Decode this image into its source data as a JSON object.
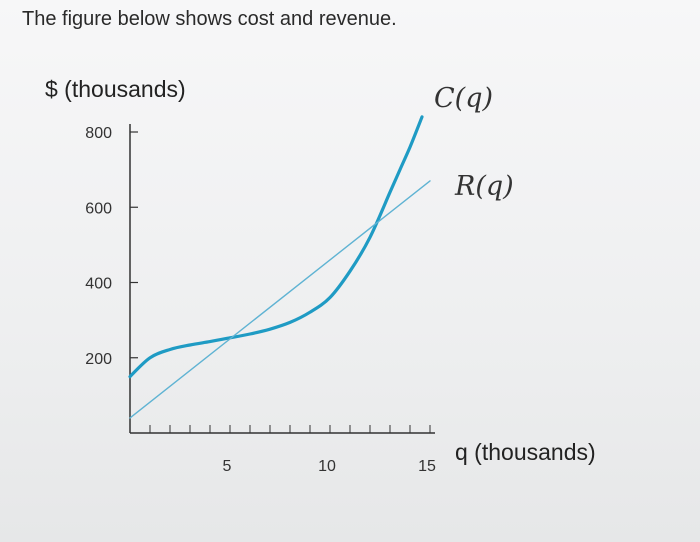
{
  "prompt": "The figure below shows cost and revenue.",
  "chart_data": {
    "type": "line",
    "ylabel": "$ (thousands)",
    "xlabel": "q (thousands)",
    "xlim": [
      0,
      15
    ],
    "ylim": [
      0,
      800
    ],
    "x_ticks": [
      5,
      10,
      15
    ],
    "y_ticks": [
      200,
      400,
      600,
      800
    ],
    "grid": false,
    "colors": {
      "cost": "#1f9bc4",
      "revenue": "#5fb3d3",
      "axis": "#333333"
    },
    "series": [
      {
        "name": "C(q)",
        "style": "thick",
        "x": [
          0,
          1,
          2,
          3,
          4,
          5,
          6,
          7,
          8,
          9,
          10,
          11,
          12,
          13,
          13.5,
          14,
          14.6
        ],
        "y": [
          150,
          200,
          222,
          234,
          243,
          253,
          263,
          276,
          294,
          321,
          360,
          430,
          520,
          640,
          700,
          760,
          840
        ]
      },
      {
        "name": "R(q)",
        "style": "thin",
        "x": [
          0,
          15
        ],
        "y": [
          40,
          670
        ]
      }
    ]
  }
}
